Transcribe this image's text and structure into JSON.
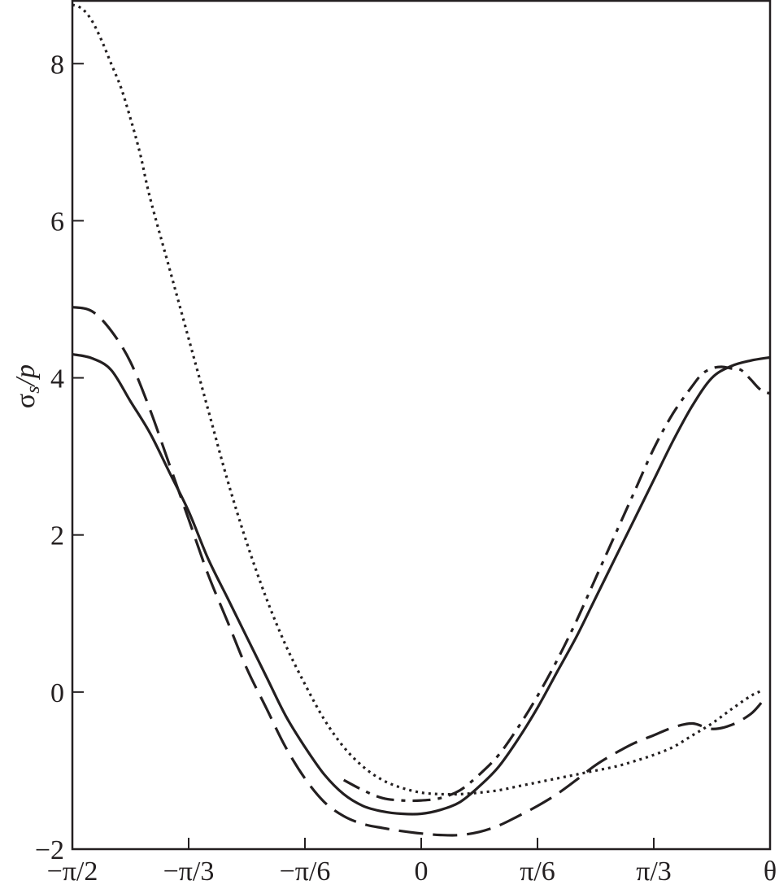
{
  "chart_data": {
    "type": "line",
    "xlabel": "θ",
    "ylabel": "σs/p",
    "ylabel_main": "σ",
    "ylabel_sub": "s",
    "ylabel_tail": "/p",
    "xlim": [
      -1.5708,
      1.5708
    ],
    "ylim": [
      -2,
      8.8
    ],
    "grid": false,
    "x_ticks": [
      {
        "value": -1.5708,
        "label": "−π/2"
      },
      {
        "value": -1.0472,
        "label": "−π/3"
      },
      {
        "value": -0.5236,
        "label": "−π/6"
      },
      {
        "value": 0,
        "label": "0"
      },
      {
        "value": 0.5236,
        "label": "π/6"
      },
      {
        "value": 1.0472,
        "label": "π/3"
      }
    ],
    "y_ticks": [
      {
        "value": -2,
        "label": "−2"
      },
      {
        "value": 0,
        "label": "0"
      },
      {
        "value": 2,
        "label": "2"
      },
      {
        "value": 4,
        "label": "4"
      },
      {
        "value": 6,
        "label": "6"
      },
      {
        "value": 8,
        "label": "8"
      }
    ],
    "series": [
      {
        "style": "solid",
        "x": [
          -1.5708,
          -1.4835,
          -1.3963,
          -1.309,
          -1.2217,
          -1.1345,
          -1.0472,
          -0.9599,
          -0.8727,
          -0.7854,
          -0.6981,
          -0.6109,
          -0.5236,
          -0.4363,
          -0.3491,
          -0.2618,
          -0.1745,
          -0.0873,
          0,
          0.0873,
          0.1745,
          0.2618,
          0.3491,
          0.4363,
          0.5236,
          0.6109,
          0.6981,
          0.7854,
          0.8727,
          0.9599,
          1.0472,
          1.1345,
          1.2217,
          1.309,
          1.3963,
          1.4835,
          1.5708
        ],
        "y": [
          4.3,
          4.25,
          4.1,
          3.7,
          3.3,
          2.8,
          2.3,
          1.7,
          1.2,
          0.7,
          0.2,
          -0.3,
          -0.7,
          -1.05,
          -1.3,
          -1.45,
          -1.52,
          -1.55,
          -1.55,
          -1.5,
          -1.4,
          -1.2,
          -0.95,
          -0.6,
          -0.2,
          0.25,
          0.7,
          1.2,
          1.7,
          2.2,
          2.7,
          3.2,
          3.65,
          4.0,
          4.15,
          4.22,
          4.26
        ]
      },
      {
        "style": "dashed",
        "x": [
          -1.5708,
          -1.4835,
          -1.3963,
          -1.309,
          -1.2217,
          -1.1345,
          -1.0472,
          -0.9599,
          -0.8727,
          -0.7854,
          -0.6981,
          -0.6109,
          -0.5236,
          -0.4363,
          -0.3491,
          -0.2618,
          -0.1745,
          -0.0873,
          0,
          0.0873,
          0.1745,
          0.2618,
          0.3491,
          0.4363,
          0.5236,
          0.6109,
          0.6981,
          0.7854,
          0.8727,
          0.9599,
          1.0472,
          1.1345,
          1.2217,
          1.309,
          1.3963,
          1.4835,
          1.5364
        ],
        "y": [
          4.9,
          4.85,
          4.6,
          4.2,
          3.6,
          2.9,
          2.2,
          1.5,
          0.9,
          0.3,
          -0.2,
          -0.7,
          -1.1,
          -1.4,
          -1.58,
          -1.68,
          -1.73,
          -1.77,
          -1.8,
          -1.82,
          -1.82,
          -1.78,
          -1.7,
          -1.58,
          -1.45,
          -1.3,
          -1.12,
          -0.93,
          -0.78,
          -0.65,
          -0.55,
          -0.45,
          -0.4,
          -0.47,
          -0.42,
          -0.28,
          -0.12
        ]
      },
      {
        "style": "dotted",
        "x": [
          -1.5708,
          -1.5272,
          -1.4835,
          -1.4399,
          -1.3963,
          -1.3526,
          -1.309,
          -1.2654,
          -1.2217,
          -1.1345,
          -1.0472,
          -0.9599,
          -0.8727,
          -0.7854,
          -0.6981,
          -0.6109,
          -0.5236,
          -0.4363,
          -0.3491,
          -0.2618,
          -0.1745,
          -0.0873,
          0,
          0.0873,
          0.1745,
          0.2618,
          0.3491,
          0.4363,
          0.5236,
          0.6109,
          0.6981,
          0.7854,
          0.8727,
          0.9599,
          1.0472,
          1.1345,
          1.2217,
          1.309,
          1.3963,
          1.4835,
          1.5364
        ],
        "y": [
          8.75,
          8.7,
          8.55,
          8.3,
          8.0,
          7.7,
          7.3,
          6.85,
          6.3,
          5.4,
          4.5,
          3.6,
          2.7,
          1.9,
          1.2,
          0.6,
          0.1,
          -0.35,
          -0.7,
          -0.95,
          -1.12,
          -1.22,
          -1.28,
          -1.3,
          -1.3,
          -1.28,
          -1.25,
          -1.2,
          -1.15,
          -1.1,
          -1.05,
          -1.0,
          -0.95,
          -0.88,
          -0.8,
          -0.7,
          -0.55,
          -0.4,
          -0.22,
          -0.05,
          0.02
        ]
      },
      {
        "style": "dash-dot",
        "x": [
          -0.3491,
          -0.2618,
          -0.1745,
          -0.0873,
          0,
          0.0873,
          0.1745,
          0.2618,
          0.3491,
          0.4363,
          0.5236,
          0.6109,
          0.6981,
          0.7854,
          0.8727,
          0.9599,
          1.0472,
          1.1345,
          1.2217,
          1.2654,
          1.309,
          1.3526,
          1.3963,
          1.4399,
          1.4835,
          1.5272,
          1.5708
        ],
        "y": [
          -1.12,
          -1.25,
          -1.35,
          -1.38,
          -1.38,
          -1.35,
          -1.25,
          -1.05,
          -0.8,
          -0.45,
          -0.05,
          0.4,
          0.9,
          1.45,
          2.0,
          2.55,
          3.1,
          3.55,
          3.9,
          4.05,
          4.12,
          4.14,
          4.12,
          4.1,
          3.98,
          3.85,
          3.8
        ]
      }
    ]
  }
}
